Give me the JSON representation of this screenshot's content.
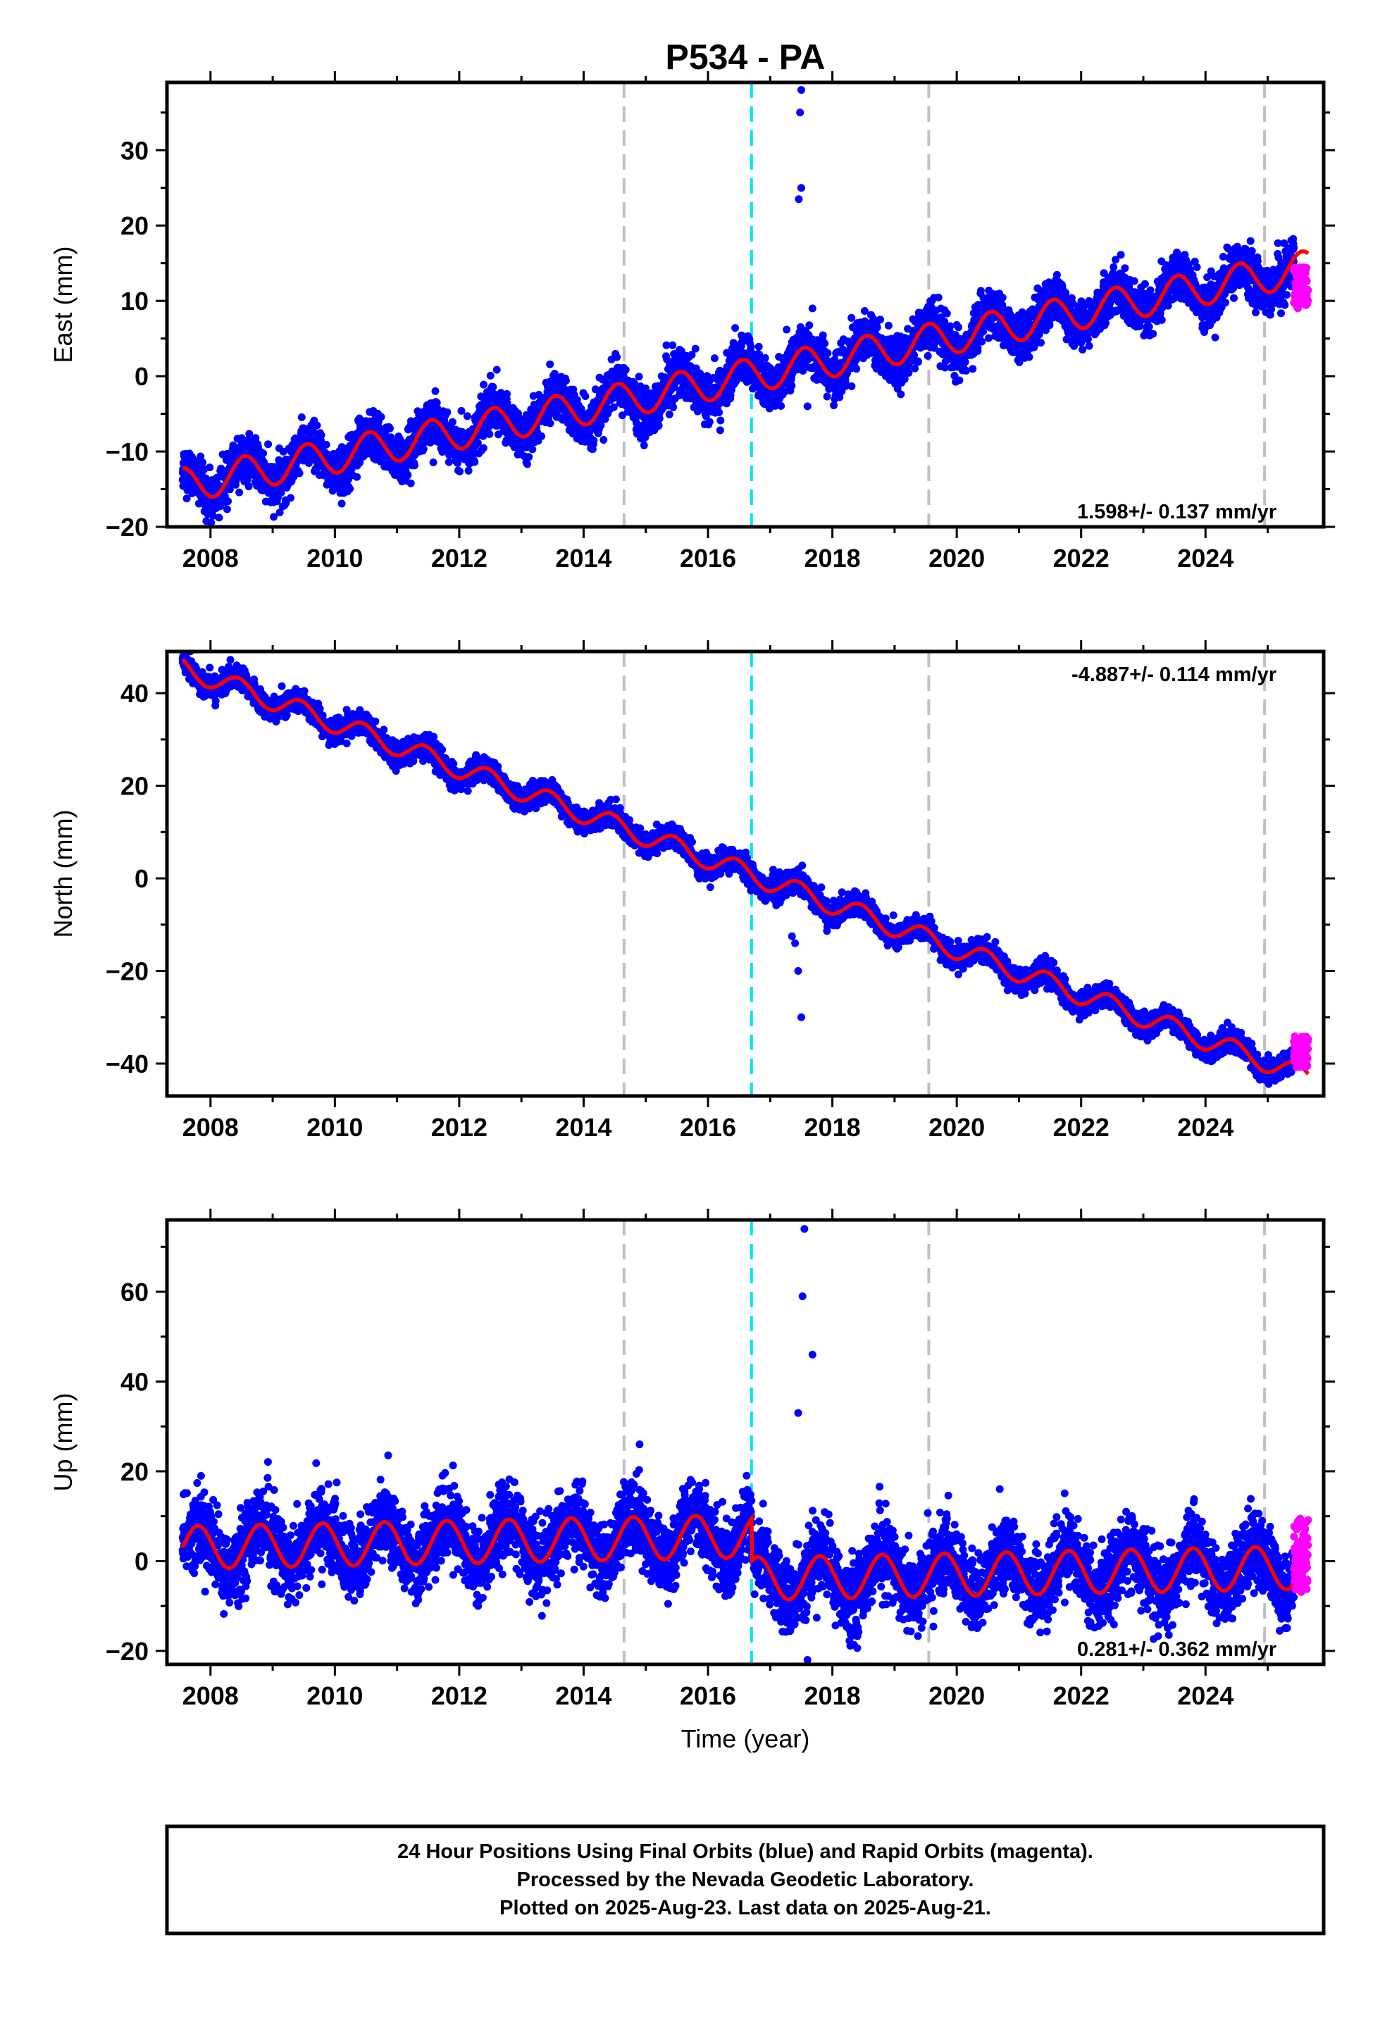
{
  "title": "P534 - PA",
  "footer": {
    "lines": [
      "24 Hour Positions Using Final Orbits (blue) and Rapid Orbits (magenta).",
      "Processed by the Nevada Geodetic Laboratory.",
      "Plotted on 2025-Aug-23. Last data on 2025-Aug-21."
    ]
  },
  "colors": {
    "final_orbits": "#0000ff",
    "rapid_orbits": "#ff00ff",
    "model_fit": "#ff0000",
    "equipment_change": "#c0c0c0",
    "earthquake": "#00e5ee"
  },
  "chart_data": [
    {
      "type": "scatter",
      "component": "east",
      "xlabel": "",
      "ylabel": "East (mm)",
      "xlim": [
        2007.3,
        2025.9
      ],
      "ylim": [
        -20,
        39
      ],
      "x_ticks": [
        2008,
        2010,
        2012,
        2014,
        2016,
        2018,
        2020,
        2022,
        2024
      ],
      "x_tick_labels": [
        "2008",
        "2010",
        "2012",
        "2014",
        "2016",
        "2018",
        "2020",
        "2022",
        "2024"
      ],
      "y_ticks": [
        -20,
        -10,
        0,
        10,
        20,
        30
      ],
      "y_tick_labels": [
        "−20",
        "−10",
        "0",
        "10",
        "20",
        "30"
      ],
      "rate_label": "1.598+/- 0.137 mm/yr",
      "rate_position": "bottom-right",
      "gray_dashed_lines_x": [
        2014.65,
        2019.55,
        2024.95
      ],
      "cyan_dashed_lines_x": [
        2016.7
      ],
      "trend": {
        "start": 2007.55,
        "end": 2025.65,
        "value_at_start": -14.5,
        "rate": 1.598,
        "annual_amplitude": 2.3,
        "phase_peak_year_fraction": 0.55,
        "scatter": 1.5
      },
      "offsets": [],
      "outliers": [
        {
          "x": 2017.5,
          "y": 38
        },
        {
          "x": 2017.48,
          "y": 35
        },
        {
          "x": 2017.5,
          "y": 25
        },
        {
          "x": 2017.46,
          "y": 23.5
        },
        {
          "x": 2017.68,
          "y": 9
        },
        {
          "x": 2017.6,
          "y": -4
        }
      ],
      "rapid_segment": {
        "start": 2025.42,
        "end": 2025.65,
        "y_range": [
          9,
          14.5
        ]
      }
    },
    {
      "type": "scatter",
      "component": "north",
      "xlabel": "",
      "ylabel": "North (mm)",
      "xlim": [
        2007.3,
        2025.9
      ],
      "ylim": [
        -47,
        49
      ],
      "x_ticks": [
        2008,
        2010,
        2012,
        2014,
        2016,
        2018,
        2020,
        2022,
        2024
      ],
      "x_tick_labels": [
        "2008",
        "2010",
        "2012",
        "2014",
        "2016",
        "2018",
        "2020",
        "2022",
        "2024"
      ],
      "y_ticks": [
        -40,
        -20,
        0,
        20,
        40
      ],
      "y_tick_labels": [
        "−40",
        "−20",
        "0",
        "20",
        "40"
      ],
      "rate_label": "-4.887+/- 0.114 mm/yr",
      "rate_position": "top-right",
      "gray_dashed_lines_x": [
        2014.65,
        2019.55,
        2024.95
      ],
      "cyan_dashed_lines_x": [
        2016.7
      ],
      "trend": {
        "start": 2007.55,
        "end": 2025.65,
        "value_at_start": 45.5,
        "rate": -4.887,
        "annual_amplitude": 2.2,
        "phase_peak_year_fraction": 0.45,
        "scatter": 1.2
      },
      "offsets": [],
      "outliers": [
        {
          "x": 2017.5,
          "y": -30
        },
        {
          "x": 2017.45,
          "y": -20
        },
        {
          "x": 2017.4,
          "y": -14
        },
        {
          "x": 2017.35,
          "y": -12.5
        }
      ],
      "rapid_segment": {
        "start": 2025.42,
        "end": 2025.65,
        "y_range": [
          -41,
          -34
        ]
      }
    },
    {
      "type": "scatter",
      "component": "up",
      "xlabel": "Time (year)",
      "ylabel": "Up (mm)",
      "xlim": [
        2007.3,
        2025.9
      ],
      "ylim": [
        -23,
        76
      ],
      "x_ticks": [
        2008,
        2010,
        2012,
        2014,
        2016,
        2018,
        2020,
        2022,
        2024
      ],
      "x_tick_labels": [
        "2008",
        "2010",
        "2012",
        "2014",
        "2016",
        "2018",
        "2020",
        "2022",
        "2024"
      ],
      "y_ticks": [
        -20,
        0,
        20,
        40,
        60
      ],
      "y_tick_labels": [
        "−20",
        "0",
        "20",
        "40",
        "60"
      ],
      "rate_label": "0.281+/- 0.362 mm/yr",
      "rate_position": "bottom-right",
      "gray_dashed_lines_x": [
        2014.65,
        2019.55,
        2024.95
      ],
      "cyan_dashed_lines_x": [
        2016.7
      ],
      "trend": {
        "start": 2007.55,
        "end": 2025.65,
        "value_at_start": 3.0,
        "rate": 0.281,
        "annual_amplitude": 4.8,
        "phase_peak_year_fraction": 0.8,
        "scatter": 4.0
      },
      "offsets": [
        {
          "x": 2016.7,
          "dy": -9.5
        }
      ],
      "outliers": [
        {
          "x": 2017.55,
          "y": 74
        },
        {
          "x": 2017.52,
          "y": 59
        },
        {
          "x": 2017.68,
          "y": 46
        },
        {
          "x": 2017.45,
          "y": 33
        },
        {
          "x": 2014.9,
          "y": 26
        },
        {
          "x": 2017.6,
          "y": -22
        }
      ],
      "rapid_segment": {
        "start": 2025.42,
        "end": 2025.65,
        "y_range": [
          -7,
          9.5
        ]
      }
    }
  ]
}
